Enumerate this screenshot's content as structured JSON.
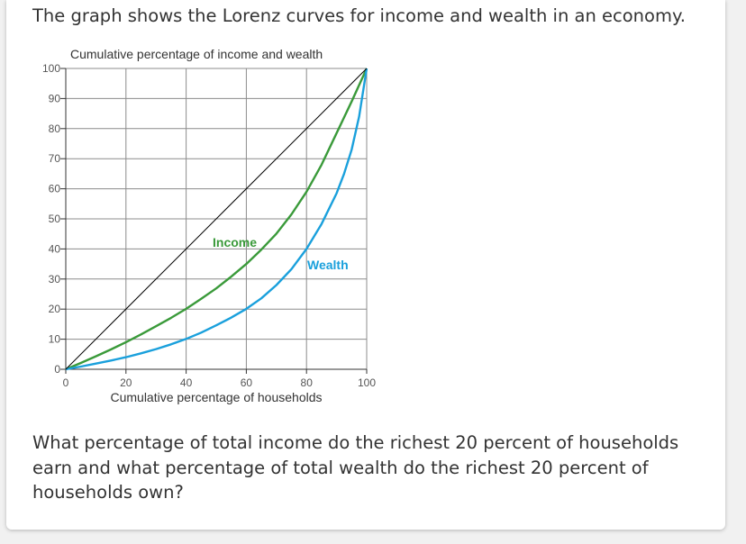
{
  "intro_text": "The graph shows the Lorenz curves for income and wealth in an economy.",
  "question_text": "What percentage of total income do the richest 20 percent of households earn and what percentage of total wealth do the richest 20 percent of households own?",
  "chart_data": {
    "type": "line",
    "ylabel": "Cumulative percentage of income and wealth",
    "xlabel": "Cumulative percentage of households",
    "xlim": [
      0,
      100
    ],
    "ylim": [
      0,
      100
    ],
    "x_ticks": [
      0,
      20,
      40,
      60,
      80,
      100
    ],
    "x_tick_labels": [
      "0",
      "20",
      "40",
      "60",
      "80",
      "100"
    ],
    "y_ticks": [
      0,
      10,
      20,
      30,
      40,
      50,
      60,
      70,
      80,
      90,
      100
    ],
    "y_tick_labels": [
      "0",
      "10",
      "20",
      "30",
      "40",
      "50",
      "60",
      "70",
      "80",
      "90",
      "100"
    ],
    "grid": true,
    "series": [
      {
        "name": "Income",
        "color": "#3a9a3a",
        "x": [
          0,
          5,
          10,
          15,
          20,
          25,
          30,
          35,
          40,
          45,
          50,
          55,
          60,
          65,
          70,
          75,
          80,
          85,
          90,
          95,
          100
        ],
        "y": [
          0,
          2.1,
          4.3,
          6.6,
          9,
          11.6,
          14.3,
          17.1,
          20.1,
          23.4,
          26.9,
          30.8,
          35,
          39.8,
          45.1,
          51.5,
          59,
          68,
          78.5,
          89,
          100
        ]
      },
      {
        "name": "Wealth",
        "color": "#1aa0dc",
        "x": [
          0,
          5,
          10,
          15,
          20,
          25,
          30,
          35,
          40,
          45,
          50,
          55,
          60,
          65,
          70,
          75,
          80,
          85,
          90,
          92.5,
          95,
          97.5,
          100
        ],
        "y": [
          0,
          0.9,
          1.9,
          2.9,
          4,
          5.3,
          6.7,
          8.3,
          10.1,
          12.2,
          14.6,
          17.2,
          20.1,
          23.6,
          28,
          33.3,
          40,
          48.3,
          58.5,
          65,
          73,
          84,
          100
        ]
      },
      {
        "name": "",
        "color": "#000000",
        "x": [
          0,
          100
        ],
        "y": [
          0,
          100
        ]
      }
    ],
    "annotations": [
      {
        "text": "Income",
        "series": "Income"
      },
      {
        "text": "Wealth",
        "series": "Wealth"
      }
    ]
  }
}
